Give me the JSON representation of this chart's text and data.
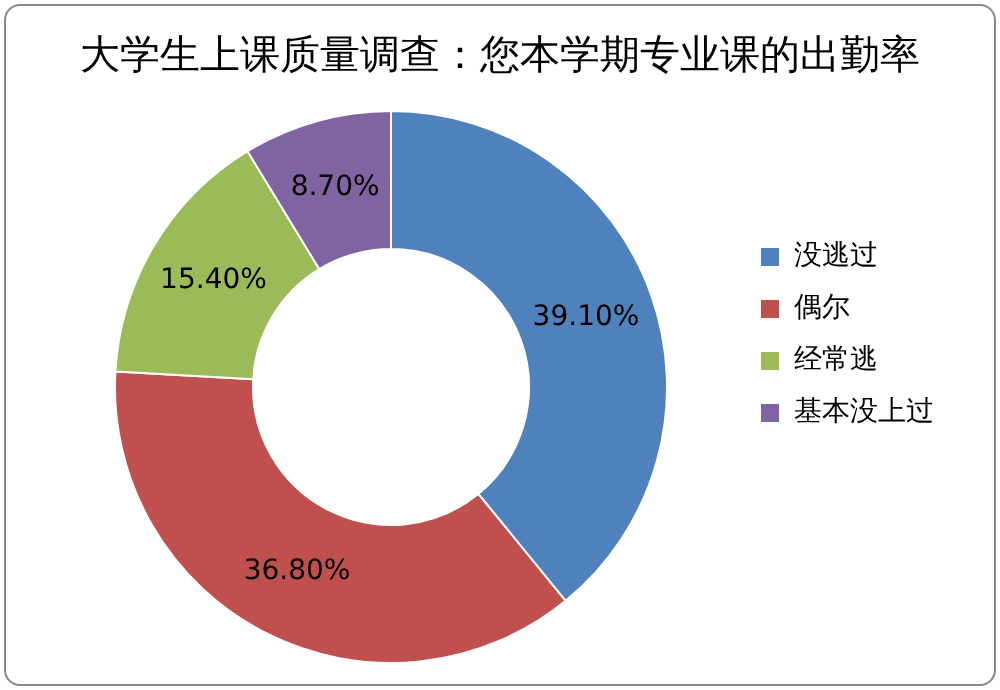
{
  "chart_data": {
    "type": "donut",
    "title": "大学生上课质量调查：您本学期专业课的出勤率",
    "categories": [
      "没逃过",
      "偶尔",
      "经常逃",
      "基本没上过"
    ],
    "values": [
      39.1,
      36.8,
      15.4,
      8.7
    ],
    "colors": [
      "#4f81bd",
      "#c0504d",
      "#9bbb59",
      "#8064a2"
    ],
    "value_labels": [
      "39.10%",
      "36.80%",
      "15.40%",
      "8.70%"
    ],
    "legend": "right"
  }
}
